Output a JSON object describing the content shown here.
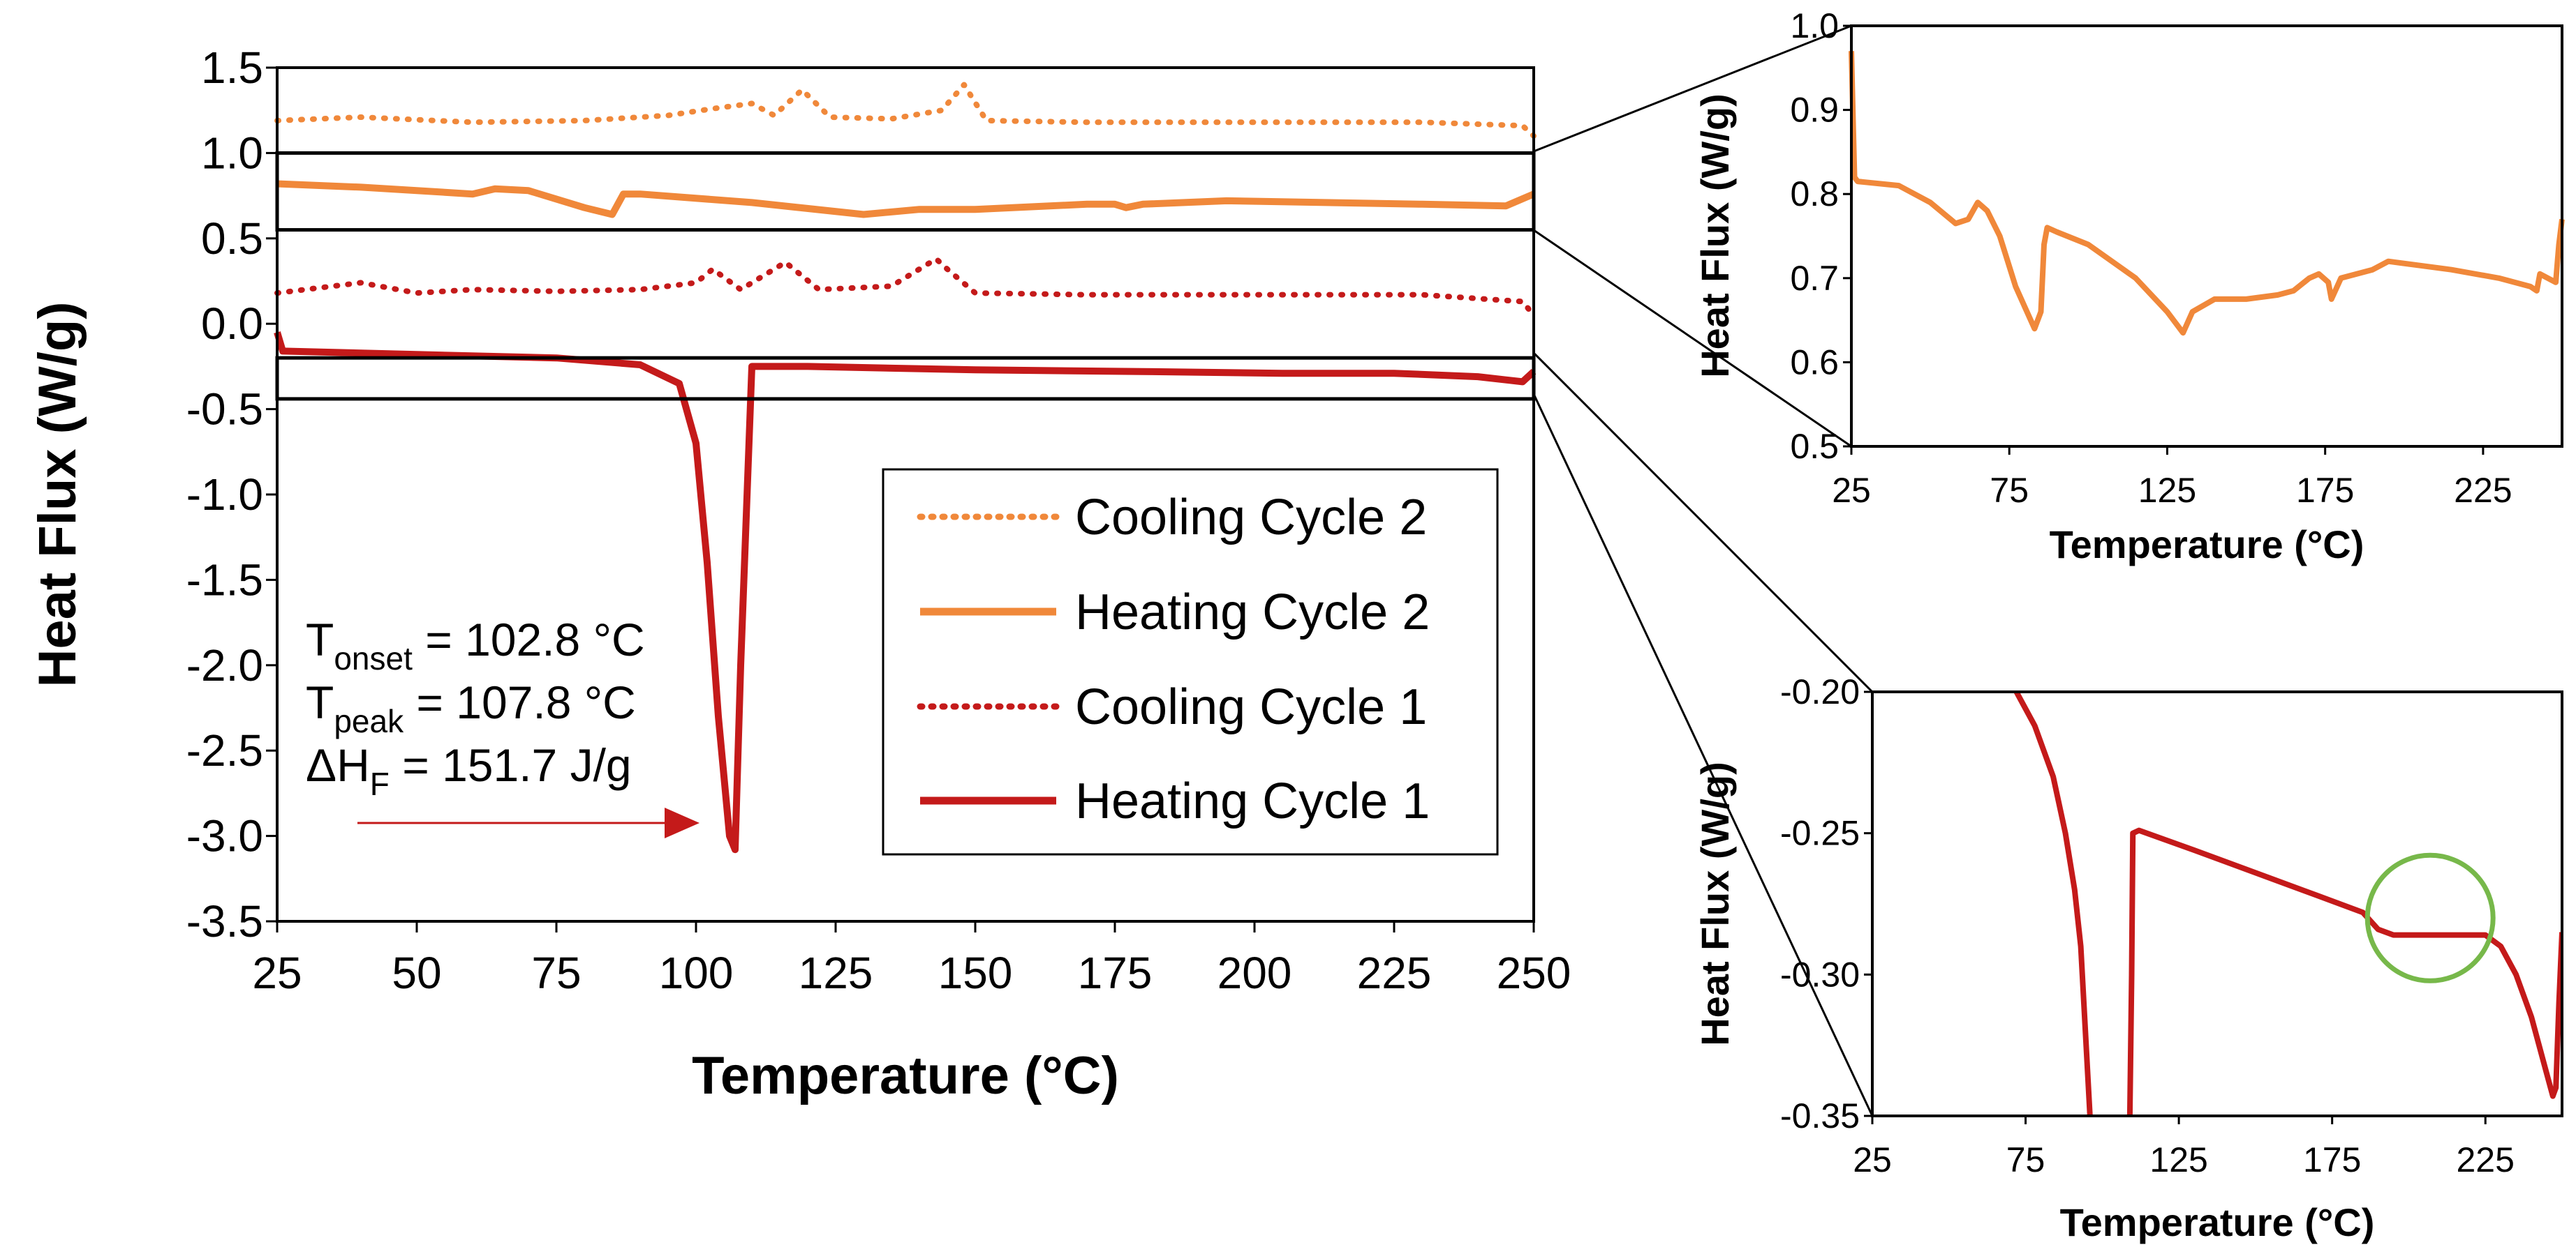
{
  "chart_data": [
    {
      "type": "line",
      "id": "main",
      "xlabel": "Temperature (°C)",
      "ylabel": "Heat Flux (W/g)",
      "xlim": [
        25,
        250
      ],
      "ylim": [
        -3.5,
        1.5
      ],
      "xticks": [
        "25",
        "50",
        "75",
        "100",
        "125",
        "150",
        "175",
        "200",
        "225",
        "250"
      ],
      "yticks": [
        "1.5",
        "1.0",
        "0.5",
        "0.0",
        "-0.5",
        "-1.0",
        "-1.5",
        "-2.0",
        "-2.5",
        "-3.0",
        "-3.5"
      ],
      "grid": false,
      "legend_position": "bottom-right",
      "series": [
        {
          "name": "Cooling Cycle 2",
          "color": "#F0883A",
          "style": "dotted",
          "x": [
            25,
            40,
            60,
            80,
            95,
            103,
            110,
            114,
            119,
            124,
            135,
            144,
            148,
            152,
            170,
            200,
            230,
            248,
            250
          ],
          "y": [
            1.19,
            1.21,
            1.18,
            1.19,
            1.22,
            1.26,
            1.29,
            1.22,
            1.37,
            1.21,
            1.2,
            1.25,
            1.4,
            1.19,
            1.18,
            1.18,
            1.18,
            1.16,
            1.1
          ]
        },
        {
          "name": "Heating Cycle 2",
          "color": "#F0883A",
          "style": "solid",
          "x": [
            25,
            40,
            55,
            60,
            64,
            70,
            80,
            85,
            87,
            90,
            110,
            130,
            140,
            150,
            170,
            175,
            177,
            180,
            195,
            230,
            245,
            250
          ],
          "y": [
            0.82,
            0.8,
            0.77,
            0.76,
            0.79,
            0.78,
            0.68,
            0.64,
            0.76,
            0.76,
            0.71,
            0.64,
            0.67,
            0.67,
            0.7,
            0.7,
            0.68,
            0.7,
            0.72,
            0.7,
            0.69,
            0.76
          ]
        },
        {
          "name": "Cooling Cycle 1",
          "color": "#C41A1A",
          "style": "dotted",
          "x": [
            25,
            30,
            40,
            50,
            60,
            75,
            90,
            100,
            103,
            108,
            112,
            116,
            122,
            135,
            143,
            145,
            150,
            170,
            200,
            230,
            248,
            250
          ],
          "y": [
            0.18,
            0.2,
            0.24,
            0.18,
            0.2,
            0.19,
            0.2,
            0.24,
            0.32,
            0.2,
            0.28,
            0.36,
            0.2,
            0.22,
            0.38,
            0.32,
            0.18,
            0.17,
            0.17,
            0.17,
            0.13,
            0.05
          ]
        },
        {
          "name": "Heating Cycle 1",
          "color": "#C41A1A",
          "style": "solid",
          "x": [
            25,
            26,
            50,
            75,
            90,
            97,
            100,
            102,
            104,
            106,
            107,
            108,
            110,
            120,
            150,
            180,
            205,
            225,
            240,
            248,
            250
          ],
          "y": [
            -0.05,
            -0.16,
            -0.18,
            -0.2,
            -0.24,
            -0.35,
            -0.7,
            -1.4,
            -2.3,
            -3.0,
            -3.08,
            -2.0,
            -0.25,
            -0.25,
            -0.27,
            -0.28,
            -0.29,
            -0.29,
            -0.31,
            -0.34,
            -0.28
          ]
        }
      ],
      "annotations": {
        "onset_label": "T",
        "onset_sub": "onset",
        "onset_value": " = 102.8 °C",
        "peak_label": "T",
        "peak_sub": "peak",
        "peak_value": " = 107.8 °C",
        "dh_label": "ΔH",
        "dh_sub": "F",
        "dh_value": " = 151.7 J/g",
        "arrow_color": "#C41A1A"
      },
      "zoom_boxes": [
        {
          "xlim": [
            25,
            250
          ],
          "ylim": [
            0.55,
            1.0
          ]
        },
        {
          "xlim": [
            25,
            250
          ],
          "ylim": [
            -0.44,
            -0.2
          ]
        }
      ]
    },
    {
      "type": "line",
      "id": "inset-top",
      "xlabel": "Temperature (°C)",
      "ylabel": "Heat Flux (W/g)",
      "xlim": [
        25,
        250
      ],
      "ylim": [
        0.5,
        1.0
      ],
      "xticks": [
        "25",
        "75",
        "125",
        "175",
        "225"
      ],
      "yticks": [
        "1.0",
        "0.9",
        "0.8",
        "0.7",
        "0.6",
        "0.5"
      ],
      "series": [
        {
          "name": "Heating Cycle 2",
          "color": "#F0883A",
          "x": [
            25,
            26,
            27,
            40,
            50,
            58,
            62,
            65,
            68,
            72,
            77,
            80,
            83,
            85,
            86,
            87,
            90,
            100,
            115,
            125,
            130,
            133,
            140,
            150,
            160,
            165,
            170,
            173,
            176,
            177,
            180,
            190,
            195,
            205,
            215,
            230,
            240,
            242,
            243,
            248,
            249,
            250
          ],
          "y": [
            0.97,
            0.82,
            0.815,
            0.81,
            0.79,
            0.765,
            0.77,
            0.79,
            0.78,
            0.75,
            0.69,
            0.665,
            0.64,
            0.66,
            0.74,
            0.76,
            0.755,
            0.74,
            0.7,
            0.66,
            0.635,
            0.66,
            0.675,
            0.675,
            0.68,
            0.685,
            0.7,
            0.705,
            0.695,
            0.675,
            0.7,
            0.71,
            0.72,
            0.715,
            0.71,
            0.7,
            0.69,
            0.685,
            0.705,
            0.695,
            0.74,
            0.77
          ]
        }
      ]
    },
    {
      "type": "line",
      "id": "inset-bottom",
      "xlabel": "Temperature (°C)",
      "ylabel": "Heat Flux (W/g)",
      "xlim": [
        25,
        250
      ],
      "ylim": [
        -0.35,
        -0.2
      ],
      "xticks": [
        "25",
        "75",
        "125",
        "175",
        "225"
      ],
      "yticks": [
        "-0.20",
        "-0.25",
        "-0.30",
        "-0.35"
      ],
      "series": [
        {
          "name": "Heating Cycle 1",
          "color": "#C41A1A",
          "segments": [
            {
              "x": [
                72,
                78,
                84,
                88,
                91,
                93,
                94,
                95,
                96
              ],
              "y": [
                -0.2,
                -0.212,
                -0.23,
                -0.25,
                -0.27,
                -0.29,
                -0.31,
                -0.33,
                -0.35
              ]
            },
            {
              "x": [
                109,
                109.6,
                110,
                112,
                130,
                150,
                170,
                185,
                190,
                195,
                200,
                210,
                220,
                225,
                230,
                235,
                240,
                245,
                247,
                248,
                249,
                250
              ],
              "y": [
                -0.35,
                -0.3,
                -0.25,
                -0.249,
                -0.256,
                -0.264,
                -0.272,
                -0.278,
                -0.284,
                -0.286,
                -0.286,
                -0.286,
                -0.286,
                -0.286,
                -0.29,
                -0.3,
                -0.315,
                -0.335,
                -0.343,
                -0.34,
                -0.31,
                -0.285
              ]
            }
          ]
        }
      ],
      "highlight_circle": {
        "x": 207,
        "y": -0.28,
        "color": "#77B84A"
      }
    }
  ]
}
